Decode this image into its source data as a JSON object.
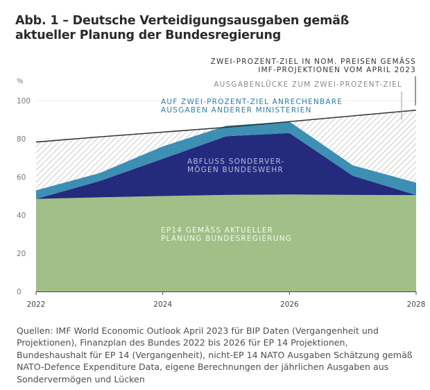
{
  "title_line1": "Abb. 1 – Deutsche Verteidigungsausgaben gemäß",
  "title_line2": "aktueller Planung der Bundesregierung",
  "source": "Quellen: IMF World Economic Outlook April 2023 für BIP Daten (Vergangenheit und Projektionen), Finanzplan des Bundes 2022 bis 2026 für EP 14 Projektionen, Bundeshaushalt für EP 14 (Vergangenheit), nicht-EP 14 NATO Ausgaben Schätzung gemäß NATO-Defence Expenditure Data, eigene Berechnungen der jährlichen Ausgaben aus Sondervermögen und Lücken",
  "chart_data": {
    "type": "area",
    "ylabel": "%",
    "ylim": [
      0,
      100
    ],
    "yticks": [
      0,
      20,
      40,
      60,
      80,
      100
    ],
    "xlim": [
      2022,
      2028
    ],
    "xticks": [
      "2022",
      "2024",
      "2026",
      "2028"
    ],
    "x": [
      2022,
      2023,
      2024,
      2025,
      2026,
      2027,
      2028
    ],
    "series": [
      {
        "name": "EP14 GEMÄSS AKTUELLER PLANUNG BUNDESREGIERUNG",
        "color": "#a1c088",
        "values": [
          48.5,
          49.3,
          50.0,
          50.6,
          50.8,
          50.6,
          50.5
        ]
      },
      {
        "name": "ABFLUSS SONDERVERMÖGEN BUNDESWEHR",
        "color": "#242a7c",
        "values": [
          0,
          8.5,
          19.5,
          30.7,
          32.2,
          10.0,
          0
        ]
      },
      {
        "name": "AUF ZWEI-PROZENT-ZIEL ANRECHENBARE AUSGABEN ANDERER MINISTERIEN",
        "color": "#3d8fb3",
        "values": [
          4.5,
          4.2,
          6.5,
          5.5,
          6.0,
          5.5,
          6.5
        ]
      },
      {
        "name": "AUSGABENLÜCKE ZUM ZWEI-PROZENT-ZIEL",
        "color": "#cccccc",
        "pattern": "hatched"
      },
      {
        "name": "ZWEI-PROZENT-ZIEL IN NOM. PREISEN GEMÄSS IMF-PROJEKTIONEN VOM APRIL 2023",
        "color": "#333333",
        "type": "line",
        "values": [
          78.3,
          81.0,
          83.5,
          86.0,
          89.0,
          92.0,
          95.0
        ]
      }
    ],
    "annotations": {
      "target_line1": "ZWEI-PROZENT-ZIEL IN NOM. PREISEN GEMÄSS",
      "target_line2": "IMF-PROJEKTIONEN VOM APRIL 2023",
      "gap": "AUSGABENLÜCKE ZUM ZWEI-PROZENT-ZIEL",
      "other_line1": "AUF ZWEI-PROZENT-ZIEL ANRECHENBARE",
      "other_line2": "AUSGABEN ANDERER MINISTERIEN",
      "special_line1": "ABFLUSS SONDERVER-",
      "special_line2": "MÖGEN BUNDESWEHR",
      "ep14_line1": "EP14 GEMÄSS AKTUELLER",
      "ep14_line2": "PLANUNG BUNDESREGIERUNG"
    }
  }
}
